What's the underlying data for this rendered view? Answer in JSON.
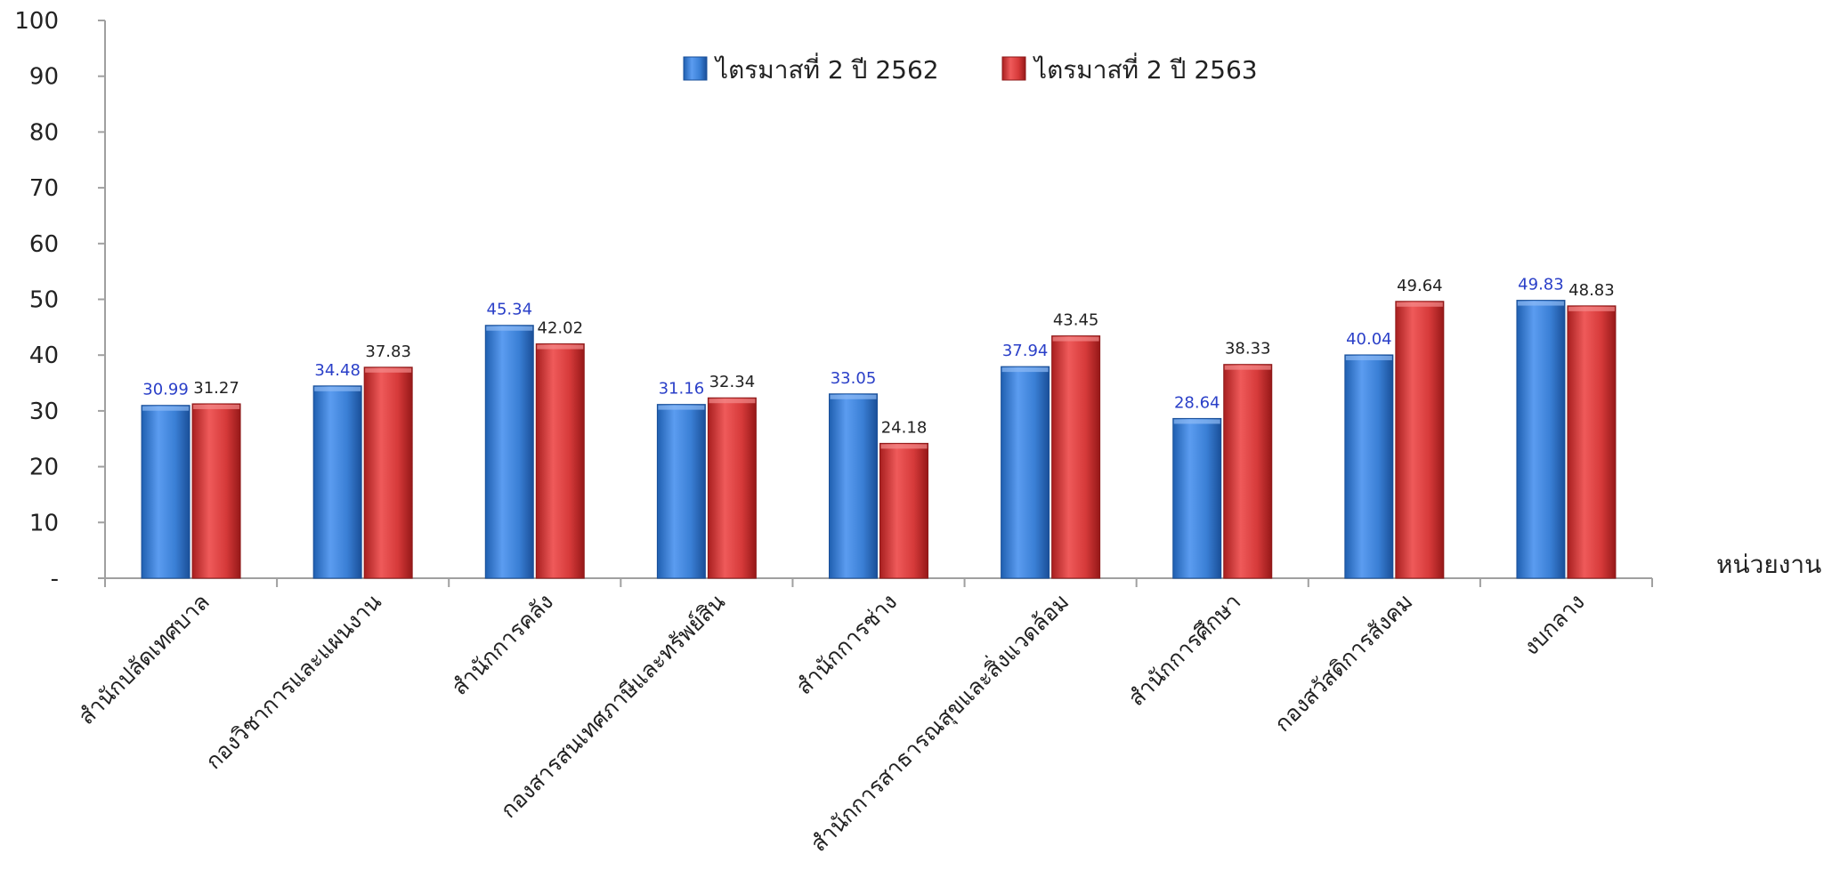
{
  "chart_data": {
    "type": "bar",
    "xlabel": "หน่วยงาน",
    "ylabel": "",
    "ylim": [
      0,
      100
    ],
    "y_ticks": [
      {
        "value": 0,
        "label": "-"
      },
      {
        "value": 10,
        "label": "10"
      },
      {
        "value": 20,
        "label": "20"
      },
      {
        "value": 30,
        "label": "30"
      },
      {
        "value": 40,
        "label": "40"
      },
      {
        "value": 50,
        "label": "50"
      },
      {
        "value": 60,
        "label": "60"
      },
      {
        "value": 70,
        "label": "70"
      },
      {
        "value": 80,
        "label": "80"
      },
      {
        "value": 90,
        "label": "90"
      },
      {
        "value": 100,
        "label": "100"
      }
    ],
    "grid": false,
    "legend_position": "top-center",
    "categories": [
      "สำนักปลัดเทศบาล",
      "กองวิชาการและแผนงาน",
      "สำนักการคลัง",
      "กองสารสนเทศภาษีและทรัพย์สิน",
      "สำนักการช่าง",
      "สำนักการสาธารณสุขและสิ่งแวดล้อม",
      "สำนักการศึกษา",
      "กองสวัสดิการสังคม",
      "งบกลาง"
    ],
    "series": [
      {
        "name": "ไตรมาสที่ 2 ปี 2562",
        "color": "#3a7fd5",
        "label_color": "#2a3fc8",
        "values": [
          30.99,
          34.48,
          45.34,
          31.16,
          33.05,
          37.94,
          28.64,
          40.04,
          49.83
        ],
        "labels": [
          "30.99",
          "34.48",
          "45.34",
          "31.16",
          "33.05",
          "37.94",
          "28.64",
          "40.04",
          "49.83"
        ]
      },
      {
        "name": "ไตรมาสที่ 2 ปี 2563",
        "color": "#d63a3a",
        "label_color": "#222222",
        "values": [
          31.27,
          37.83,
          42.02,
          32.34,
          24.18,
          43.45,
          38.33,
          49.64,
          48.83
        ],
        "labels": [
          "31.27",
          "37.83",
          "42.02",
          "32.34",
          "24.18",
          "43.45",
          "38.33",
          "49.64",
          "48.83"
        ]
      }
    ]
  }
}
